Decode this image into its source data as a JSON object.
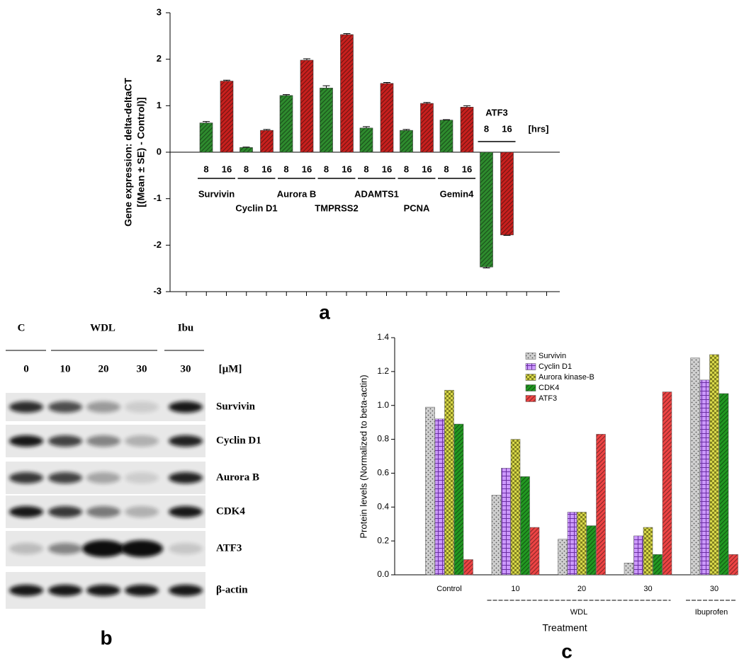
{
  "chart_data": [
    {
      "type": "bar",
      "panel_label": "a",
      "y_label": [
        "Gene expression: delta-deltaCT",
        "[(Mean ± SE) - Control)]"
      ],
      "categories": [
        "Survivin",
        "Cyclin D1",
        "Aurora B",
        "TMPRSS2",
        "ADAMTS1",
        "PCNA",
        "Gemin4",
        "ATF3"
      ],
      "x_unit": "[hrs]",
      "series": [
        {
          "name": "8",
          "color": "#2e8b2e",
          "pattern": "hatch",
          "values": [
            0.63,
            0.1,
            1.22,
            1.38,
            0.52,
            0.47,
            0.69,
            -2.47
          ],
          "errors": [
            0.03,
            0.01,
            0.02,
            0.05,
            0.03,
            0.02,
            0.01,
            0.02
          ]
        },
        {
          "name": "16",
          "color": "#c8201e",
          "pattern": "hatch",
          "values": [
            1.53,
            0.47,
            1.98,
            2.53,
            1.48,
            1.05,
            0.97,
            -1.78
          ],
          "errors": [
            0.02,
            0.02,
            0.03,
            0.02,
            0.02,
            0.02,
            0.03,
            0.01
          ]
        }
      ],
      "ylim": [
        -3,
        3
      ],
      "yticks": [
        -3,
        -2,
        -1,
        0,
        1,
        2,
        3
      ]
    },
    {
      "type": "bar",
      "panel_label": "c",
      "y_label": "Protein levels (Normalized to beta-actin)",
      "x_label": "Treatment",
      "categories": [
        "Control",
        "10",
        "20",
        "30",
        "30"
      ],
      "group_labels": [
        "WDL",
        "Ibuprofen"
      ],
      "legend": "upper center",
      "series": [
        {
          "name": "Survivin",
          "color": "#d0d0d0",
          "pattern": "dots",
          "values": [
            0.99,
            0.47,
            0.21,
            0.07,
            1.28
          ]
        },
        {
          "name": "Cyclin D1",
          "color": "#cc99ff",
          "pattern": "grid",
          "values": [
            0.92,
            0.63,
            0.37,
            0.23,
            1.15
          ]
        },
        {
          "name": "Aurora kinase-B",
          "color": "#d8d84a",
          "pattern": "checker",
          "values": [
            1.09,
            0.8,
            0.37,
            0.28,
            1.3
          ]
        },
        {
          "name": "CDK4",
          "color": "#229922",
          "pattern": "hatch",
          "values": [
            0.89,
            0.58,
            0.29,
            0.12,
            1.07
          ]
        },
        {
          "name": "ATF3",
          "color": "#ee4444",
          "pattern": "hatch",
          "values": [
            0.09,
            0.28,
            0.83,
            1.08,
            0.12
          ]
        }
      ],
      "ylim": [
        0,
        1.4
      ],
      "yticks": [
        {
          "value": 0,
          "label": "0.0"
        },
        0.2,
        0.4,
        0.6,
        0.8,
        {
          "value": 1,
          "label": "1.0"
        },
        1.2,
        1.4
      ]
    }
  ],
  "blot": {
    "panel_label": "b",
    "groups": [
      "C",
      "WDL",
      "Ibu"
    ],
    "lanes": [
      "0",
      "10",
      "20",
      "30",
      "30"
    ],
    "unit": "[µM]",
    "proteins": [
      "Survivin",
      "Cyclin D1",
      "Aurora  B",
      "CDK4",
      "ATF3",
      "β-actin"
    ]
  }
}
